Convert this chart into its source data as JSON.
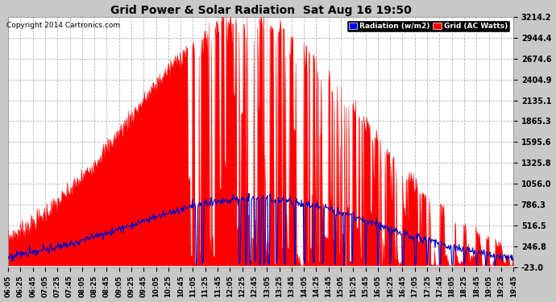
{
  "title": "Grid Power & Solar Radiation  Sat Aug 16 19:50",
  "copyright": "Copyright 2014 Cartronics.com",
  "background_color": "#c8c8c8",
  "plot_bg_color": "#ffffff",
  "yticks": [
    -23.0,
    246.8,
    516.5,
    786.3,
    1056.0,
    1325.8,
    1595.6,
    1865.3,
    2135.1,
    2404.9,
    2674.6,
    2944.4,
    3214.2
  ],
  "ymin": -23.0,
  "ymax": 3214.2,
  "grid_color": "#aaaaaa",
  "radiation_color": "#ff0000",
  "grid_power_color": "#0000cc",
  "legend_radiation_bg": "#0000ff",
  "legend_grid_bg": "#ff0000"
}
